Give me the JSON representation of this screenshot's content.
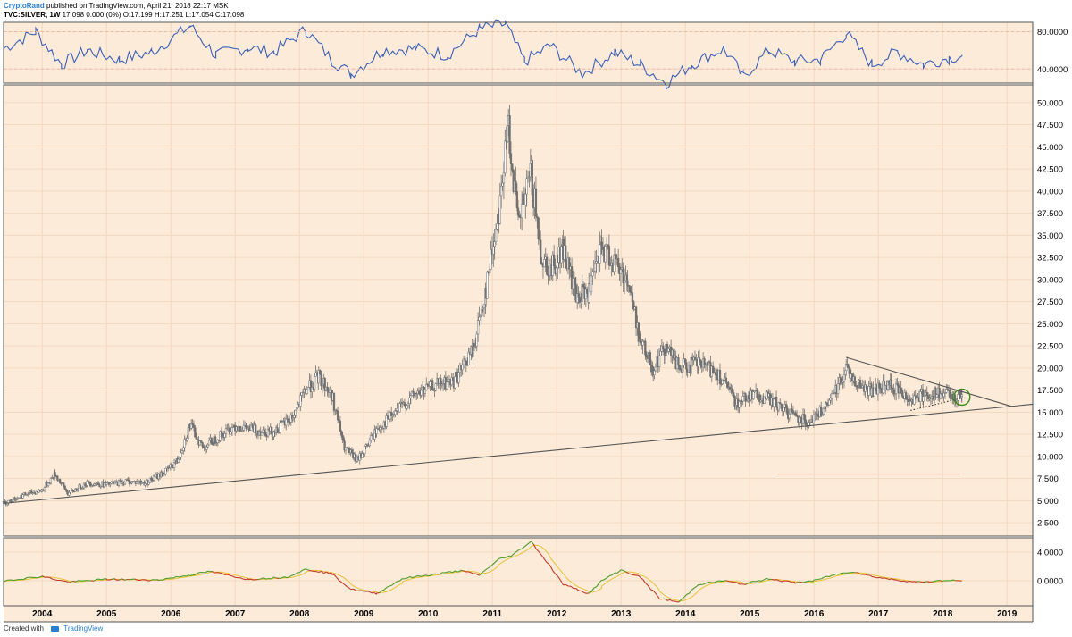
{
  "header": {
    "author": "CryptoRand",
    "published": "published on TradingView.com, April 21, 2018 22:17 MSK",
    "symbol_line": "TVC:SILVER, 1W",
    "ohlc": "17.098 0.000 (0%) O:17.199 H:17.251 L:17.054 C:17.098"
  },
  "footer": {
    "created_with": "Created with",
    "brand": "TradingView"
  },
  "colors": {
    "background": "#fcebd8",
    "grid": "#f1d9c2",
    "candle": "#707070",
    "top_indicator": "#3b5fb8",
    "osc_main": "#1a1a1a",
    "osc_signal": "#e8c23a",
    "osc_green": "#4c9a2a",
    "osc_red": "#c0392b",
    "trendline": "#555555",
    "highlight_circle": "#3a8a1a",
    "level_line": "#e8b9a8"
  },
  "chart_data": {
    "type": "candlestick",
    "title": "",
    "x_ticks": [
      "2004",
      "2005",
      "2006",
      "2007",
      "2008",
      "2009",
      "2010",
      "2011",
      "2012",
      "2013",
      "2014",
      "2015",
      "2016",
      "2017",
      "2018",
      "2019"
    ],
    "panels": [
      {
        "name": "top-oscillator",
        "type": "line",
        "y_ticks": [
          "80.0000",
          "40.0000"
        ],
        "ylim": [
          25,
          90
        ],
        "x": [
          2003.4,
          2003.9,
          2004.3,
          2004.7,
          2005.2,
          2005.7,
          2006.3,
          2006.7,
          2007.2,
          2007.6,
          2008.1,
          2008.5,
          2008.8,
          2009.3,
          2009.8,
          2010.3,
          2010.8,
          2011.2,
          2011.5,
          2011.9,
          2012.4,
          2012.9,
          2013.3,
          2013.7,
          2014.1,
          2014.6,
          2014.9,
          2015.3,
          2015.7,
          2016.1,
          2016.5,
          2016.9,
          2017.3,
          2017.7,
          2018.1,
          2018.3
        ],
        "y": [
          62,
          80,
          45,
          60,
          50,
          58,
          86,
          55,
          63,
          58,
          82,
          50,
          35,
          60,
          62,
          55,
          83,
          88,
          48,
          65,
          35,
          58,
          45,
          25,
          45,
          62,
          32,
          60,
          48,
          50,
          78,
          45,
          58,
          45,
          52,
          55
        ]
      },
      {
        "name": "price",
        "type": "candlestick",
        "y_ticks": [
          "2.500",
          "5.000",
          "7.500",
          "10.000",
          "12.500",
          "15.000",
          "17.500",
          "20.000",
          "22.500",
          "25.000",
          "27.500",
          "30.000",
          "32.500",
          "35.000",
          "37.500",
          "40.000",
          "42.500",
          "45.000",
          "47.500",
          "50.000"
        ],
        "ylim": [
          1.0,
          52.0
        ],
        "x": [
          2003.4,
          2003.7,
          2004.0,
          2004.2,
          2004.4,
          2004.7,
          2005.0,
          2005.3,
          2005.6,
          2005.9,
          2006.1,
          2006.3,
          2006.5,
          2006.8,
          2007.0,
          2007.3,
          2007.6,
          2007.9,
          2008.1,
          2008.3,
          2008.5,
          2008.7,
          2008.9,
          2009.2,
          2009.5,
          2009.8,
          2010.1,
          2010.4,
          2010.7,
          2010.9,
          2011.1,
          2011.25,
          2011.4,
          2011.6,
          2011.75,
          2011.9,
          2012.1,
          2012.3,
          2012.5,
          2012.7,
          2012.9,
          2013.1,
          2013.3,
          2013.5,
          2013.7,
          2013.9,
          2014.2,
          2014.5,
          2014.8,
          2015.0,
          2015.3,
          2015.6,
          2015.9,
          2016.2,
          2016.5,
          2016.7,
          2016.9,
          2017.2,
          2017.5,
          2017.7,
          2018.0,
          2018.2,
          2018.3
        ],
        "y": [
          4.7,
          5.6,
          6.2,
          8.0,
          5.8,
          7.0,
          6.8,
          7.2,
          7.0,
          8.2,
          9.5,
          13.5,
          11.0,
          12.5,
          13.5,
          13.0,
          12.8,
          14.5,
          17.5,
          19.0,
          17.0,
          11.0,
          9.5,
          13.0,
          15.0,
          17.0,
          18.0,
          18.5,
          22.0,
          29.0,
          38.0,
          47.5,
          36.0,
          42.0,
          33.0,
          31.0,
          33.5,
          28.0,
          28.5,
          33.5,
          32.0,
          30.0,
          23.0,
          20.0,
          22.5,
          20.0,
          20.5,
          19.5,
          16.0,
          17.0,
          16.5,
          15.0,
          14.0,
          15.5,
          20.0,
          18.0,
          17.5,
          18.0,
          16.5,
          17.0,
          17.0,
          16.7,
          17.1
        ],
        "trendlines": [
          {
            "name": "long-term-support",
            "from": [
              2003.4,
              4.7
            ],
            "to": [
              2019.4,
              15.9
            ]
          },
          {
            "name": "descending-resistance",
            "from": [
              2016.5,
              21.2
            ],
            "to": [
              2019.1,
              15.6
            ]
          },
          {
            "name": "dotted-support",
            "from": [
              2017.5,
              15.2
            ],
            "to": [
              2018.3,
              16.6
            ]
          }
        ],
        "highlight": {
          "x": 2018.3,
          "y": 16.7
        },
        "horizontal_levels": [
          8.0
        ]
      },
      {
        "name": "bottom-oscillator",
        "type": "line",
        "y_ticks": [
          "4.0000",
          "0.0000"
        ],
        "ylim": [
          -3.5,
          6.0
        ],
        "x": [
          2003.4,
          2004.0,
          2004.4,
          2005.0,
          2005.8,
          2006.3,
          2006.6,
          2007.2,
          2007.8,
          2008.1,
          2008.5,
          2008.8,
          2009.2,
          2009.6,
          2010.1,
          2010.5,
          2010.8,
          2011.1,
          2011.3,
          2011.6,
          2011.9,
          2012.1,
          2012.5,
          2012.7,
          2013.0,
          2013.3,
          2013.6,
          2013.9,
          2014.2,
          2014.6,
          2014.9,
          2015.3,
          2015.7,
          2016.0,
          2016.3,
          2016.6,
          2016.9,
          2017.2,
          2017.6,
          2018.0,
          2018.3
        ],
        "y": [
          0.0,
          0.6,
          -0.2,
          0.2,
          0.1,
          0.8,
          1.3,
          0.2,
          0.5,
          1.6,
          1.0,
          -1.2,
          -1.8,
          0.3,
          0.9,
          1.4,
          0.8,
          3.0,
          3.5,
          5.5,
          2.0,
          -0.5,
          -1.8,
          0.0,
          1.5,
          0.5,
          -2.5,
          -3.0,
          -0.5,
          0.0,
          -0.5,
          0.3,
          -0.3,
          0.0,
          0.8,
          1.3,
          0.6,
          0.2,
          -0.2,
          0.0,
          0.0
        ]
      }
    ],
    "grid": true
  }
}
